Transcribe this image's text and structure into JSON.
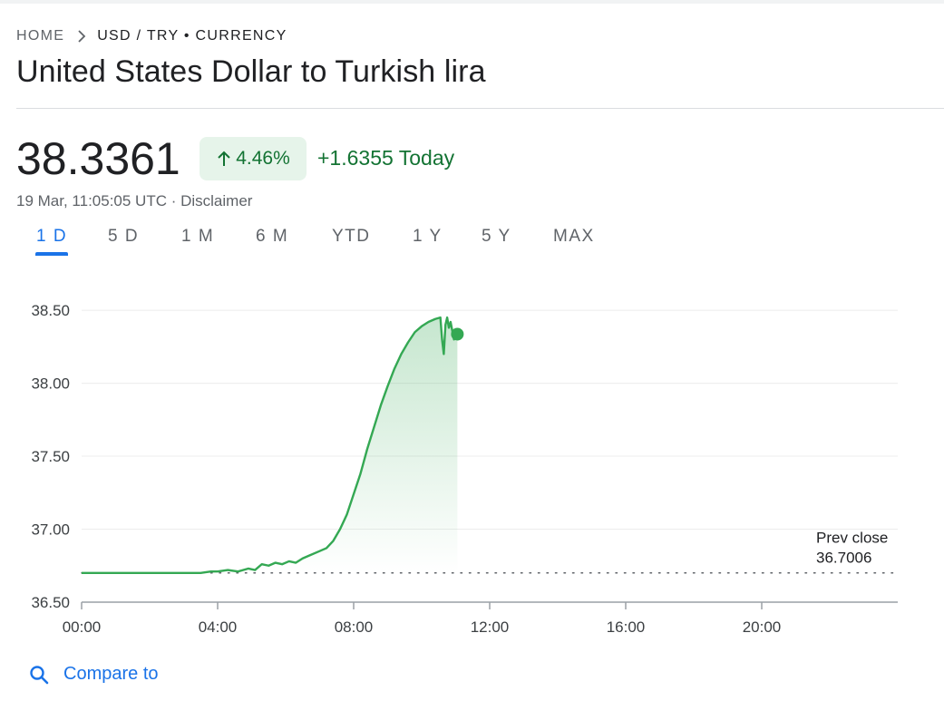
{
  "breadcrumb": {
    "home": "HOME",
    "current": "USD / TRY • CURRENCY"
  },
  "title": "United States Dollar to Turkish lira",
  "quote": {
    "price": "38.3361",
    "change_pct": "4.46%",
    "change_abs": "+1.6355 Today",
    "timestamp": "19 Mar, 11:05:05 UTC · Disclaimer"
  },
  "tabs": [
    "1 D",
    "5 D",
    "1 M",
    "6 M",
    "YTD",
    "1 Y",
    "5 Y",
    "MAX"
  ],
  "active_tab": "1 D",
  "compare_label": "Compare to",
  "colors": {
    "up": "#137333",
    "line": "#34a853",
    "accent": "#1a73e8",
    "chip_bg": "#e6f4ea"
  },
  "icons": {
    "breadcrumb_separator": "chevron-right-icon",
    "change_arrow": "arrow-up-icon",
    "compare": "search-icon"
  },
  "chart_data": {
    "type": "line",
    "y_ticks": [
      "38.50",
      "38.00",
      "37.50",
      "37.00",
      "36.50"
    ],
    "x_ticks": [
      "00:00",
      "04:00",
      "08:00",
      "12:00",
      "16:00",
      "20:00"
    ],
    "ylim": [
      36.5,
      38.6
    ],
    "xlim_hours": [
      0,
      24
    ],
    "grid": true,
    "prev_close": {
      "label": "Prev close",
      "value": "36.7006",
      "y": 36.7006
    },
    "series": [
      {
        "points": [
          [
            0.0,
            36.7
          ],
          [
            0.5,
            36.7
          ],
          [
            1.0,
            36.7
          ],
          [
            1.5,
            36.7
          ],
          [
            2.0,
            36.7
          ],
          [
            2.5,
            36.7
          ],
          [
            3.0,
            36.7
          ],
          [
            3.5,
            36.7
          ],
          [
            3.8,
            36.71
          ],
          [
            4.0,
            36.71
          ],
          [
            4.3,
            36.72
          ],
          [
            4.6,
            36.71
          ],
          [
            4.9,
            36.73
          ],
          [
            5.1,
            36.72
          ],
          [
            5.3,
            36.76
          ],
          [
            5.5,
            36.75
          ],
          [
            5.7,
            36.77
          ],
          [
            5.9,
            36.76
          ],
          [
            6.1,
            36.78
          ],
          [
            6.3,
            36.77
          ],
          [
            6.5,
            36.8
          ],
          [
            6.7,
            36.82
          ],
          [
            7.0,
            36.85
          ],
          [
            7.2,
            36.87
          ],
          [
            7.4,
            36.92
          ],
          [
            7.6,
            37.0
          ],
          [
            7.8,
            37.1
          ],
          [
            8.0,
            37.24
          ],
          [
            8.2,
            37.38
          ],
          [
            8.4,
            37.55
          ],
          [
            8.6,
            37.7
          ],
          [
            8.8,
            37.85
          ],
          [
            9.0,
            37.98
          ],
          [
            9.2,
            38.1
          ],
          [
            9.4,
            38.2
          ],
          [
            9.6,
            38.28
          ],
          [
            9.8,
            38.35
          ],
          [
            10.0,
            38.39
          ],
          [
            10.2,
            38.42
          ],
          [
            10.4,
            38.44
          ],
          [
            10.55,
            38.45
          ],
          [
            10.6,
            38.3
          ],
          [
            10.65,
            38.2
          ],
          [
            10.7,
            38.4
          ],
          [
            10.75,
            38.45
          ],
          [
            10.8,
            38.38
          ],
          [
            10.85,
            38.42
          ],
          [
            10.9,
            38.36
          ],
          [
            10.95,
            38.3
          ],
          [
            11.0,
            38.34
          ],
          [
            11.05,
            38.3361
          ]
        ]
      }
    ]
  }
}
